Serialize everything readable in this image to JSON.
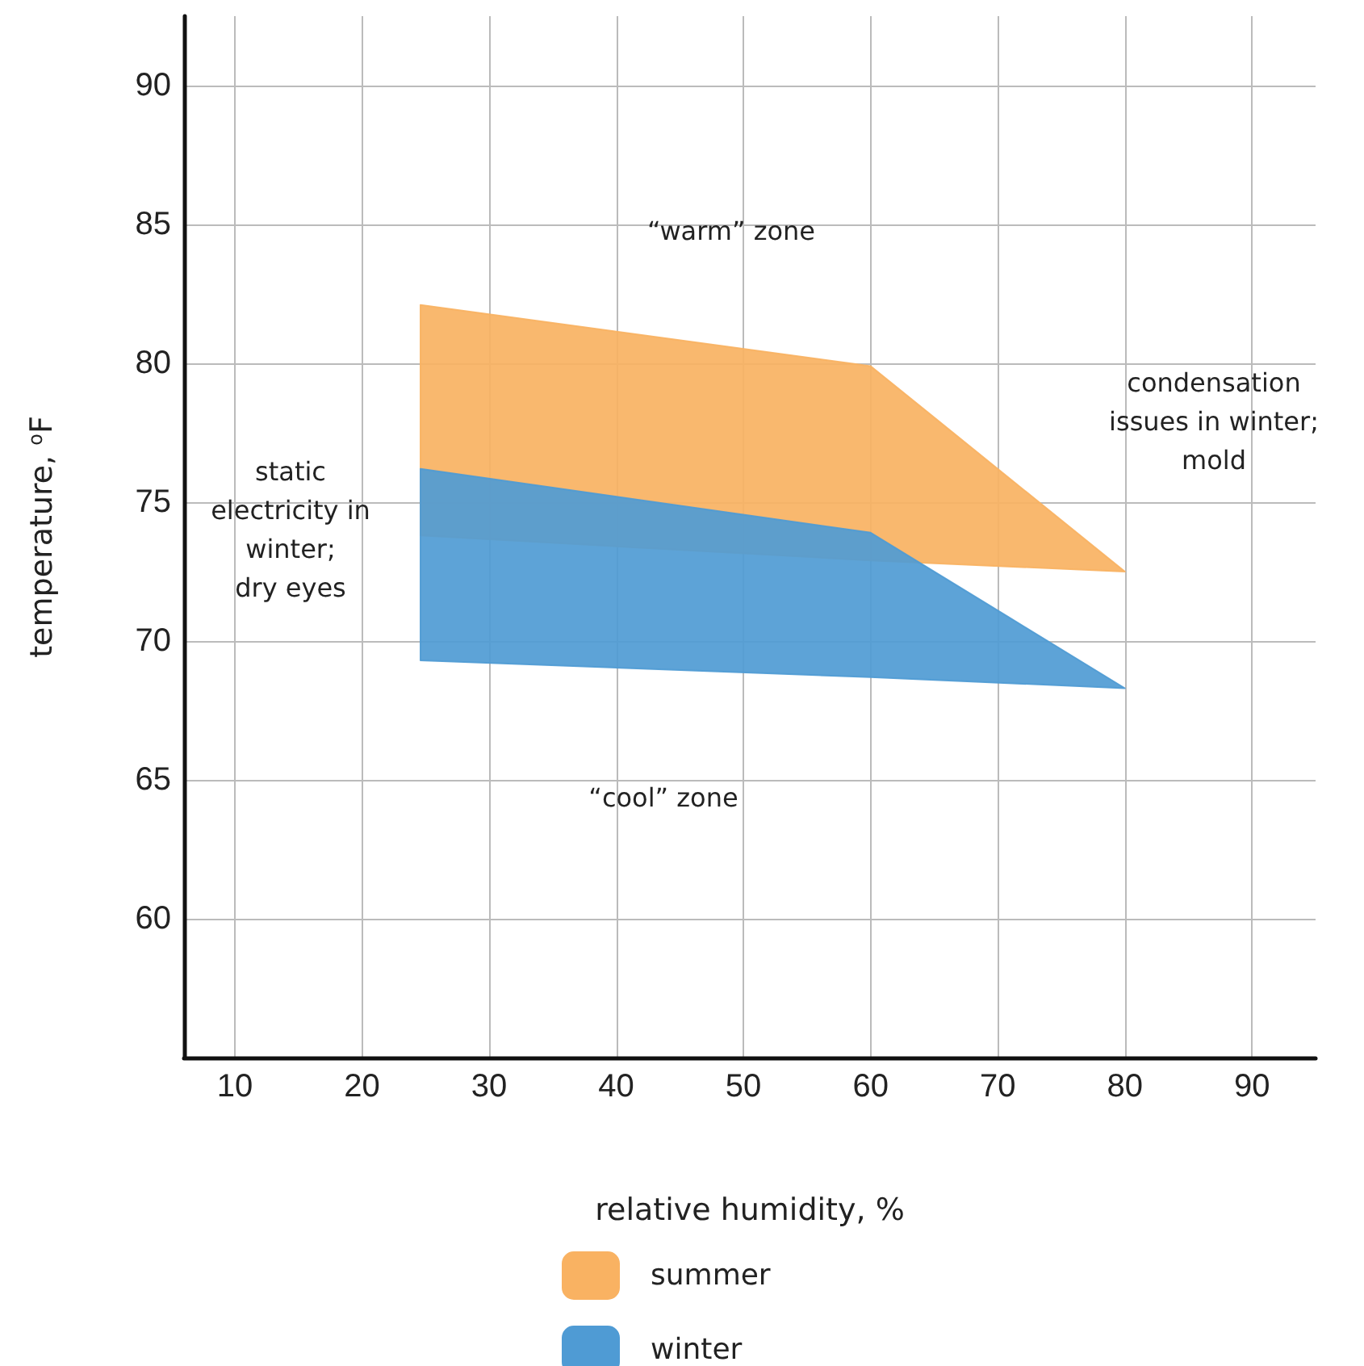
{
  "chart_data": {
    "type": "area",
    "xlabel": "relative humidity, %",
    "ylabel": "temperature, $^{o}$F",
    "xlim": [
      6,
      95
    ],
    "ylim": [
      55,
      92.5
    ],
    "xticks": [
      10,
      20,
      30,
      40,
      50,
      60,
      70,
      80,
      90
    ],
    "yticks": [
      60,
      65,
      70,
      75,
      80,
      85,
      90
    ],
    "grid": true,
    "legend": "bottom",
    "series": [
      {
        "name": "summer",
        "color": "#f9b262",
        "x": [
          24.6,
          60,
          80,
          60,
          24.6,
          24.6
        ],
        "values": [
          82.1,
          79.9,
          72.5,
          72.9,
          73.8,
          82.1
        ]
      },
      {
        "name": "winter",
        "color": "#4f9bd4",
        "x": [
          24.6,
          60,
          80,
          60,
          24.6,
          24.6
        ],
        "values": [
          76.2,
          73.9,
          68.3,
          68.7,
          69.3,
          76.2
        ]
      }
    ],
    "annotations": [
      "“warm” zone",
      "static\nelectricity in\nwinter;\ndry eyes",
      "condensation\nissues in winter;\nmold",
      "“cool” zone"
    ]
  }
}
